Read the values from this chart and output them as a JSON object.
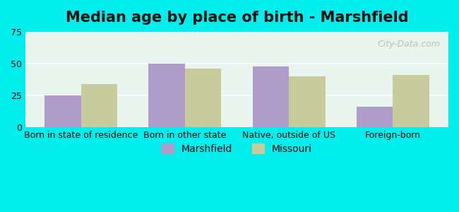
{
  "title": "Median age by place of birth - Marshfield",
  "categories": [
    "Born in state of residence",
    "Born in other state",
    "Native, outside of US",
    "Foreign-born"
  ],
  "marshfield_values": [
    25,
    50,
    48,
    16
  ],
  "missouri_values": [
    34,
    46,
    40,
    41
  ],
  "marshfield_color": "#b09cc8",
  "missouri_color": "#c8cc9c",
  "background_color": "#00eeee",
  "plot_bg_gradient_top": "#e8f8f0",
  "plot_bg_gradient_bottom": "#f0f8e8",
  "ylim": [
    0,
    75
  ],
  "yticks": [
    0,
    25,
    50,
    75
  ],
  "legend_labels": [
    "Marshfield",
    "Missouri"
  ],
  "bar_width": 0.35,
  "grid_color": "#ffffff",
  "title_fontsize": 15,
  "tick_fontsize": 9,
  "legend_fontsize": 10
}
